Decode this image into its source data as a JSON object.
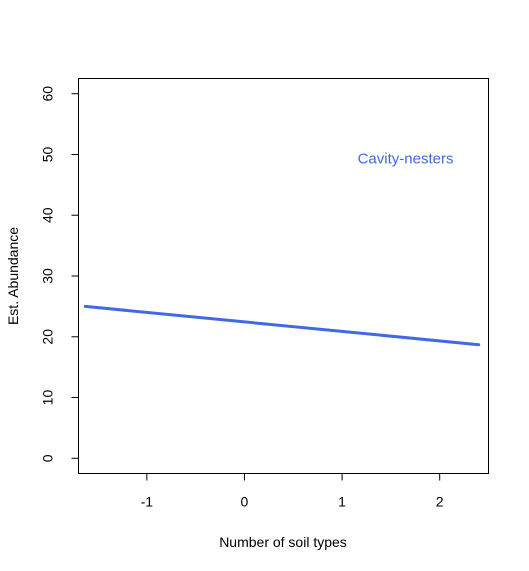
{
  "chart_data": {
    "type": "line",
    "xlabel": "Number of soil types",
    "ylabel": "Est. Abundance",
    "xlim": [
      -1.7,
      2.5
    ],
    "ylim": [
      -2.5,
      62.5
    ],
    "xticks": [
      -1,
      0,
      1,
      2
    ],
    "yticks": [
      0,
      10,
      20,
      30,
      40,
      50,
      60
    ],
    "xtick_labels": [
      "-1",
      "0",
      "1",
      "2"
    ],
    "ytick_labels": [
      "0",
      "10",
      "20",
      "30",
      "40",
      "50",
      "60"
    ],
    "grid": false,
    "annotation": {
      "text": "Cavity-nesters",
      "x": 1.65,
      "y": 48.5,
      "color": "#4169e1"
    },
    "series": [
      {
        "color": "#4169e1",
        "x": [
          -1.63,
          2.4
        ],
        "y": [
          25.0,
          18.7
        ]
      }
    ]
  }
}
